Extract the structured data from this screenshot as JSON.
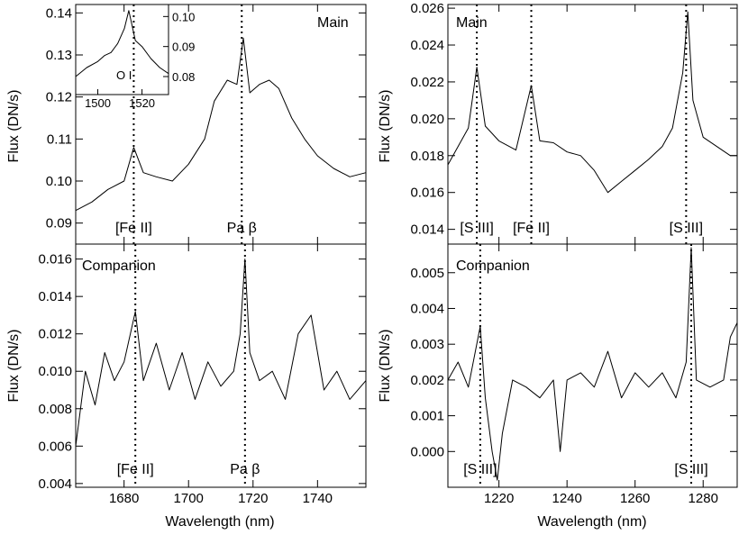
{
  "chart_data": [
    {
      "id": "p1",
      "type": "line",
      "title": "Main",
      "xlabel": "",
      "ylabel": "Flux (DN/s)",
      "xlim": [
        1665,
        1755
      ],
      "ylim": [
        0.085,
        0.142
      ],
      "xticks": [
        1680,
        1700,
        1720,
        1740
      ],
      "xtick_labels": [],
      "yticks": [
        0.09,
        0.1,
        0.11,
        0.12,
        0.13,
        0.14
      ],
      "ytick_labels": [
        "0.09",
        "0.10",
        "0.11",
        "0.12",
        "0.13",
        "0.14"
      ],
      "series": [
        {
          "name": "Main",
          "x": [
            1665,
            1670,
            1675,
            1680,
            1683,
            1686,
            1690,
            1695,
            1700,
            1705,
            1708,
            1712,
            1715,
            1717,
            1719,
            1722,
            1725,
            1728,
            1732,
            1736,
            1740,
            1745,
            1750,
            1755
          ],
          "y": [
            0.093,
            0.095,
            0.098,
            0.1,
            0.108,
            0.102,
            0.101,
            0.1,
            0.104,
            0.11,
            0.119,
            0.124,
            0.123,
            0.134,
            0.121,
            0.123,
            0.124,
            0.122,
            0.115,
            0.11,
            0.106,
            0.103,
            0.101,
            0.102
          ]
        }
      ],
      "markers": [
        {
          "x": 1683,
          "label": "[Fe II]"
        },
        {
          "x": 1716.5,
          "label": "Pa β"
        }
      ],
      "inset": {
        "label": "O I",
        "xlim": [
          1490,
          1532
        ],
        "ylim": [
          0.074,
          0.104
        ],
        "xticks": [
          1500,
          1520
        ],
        "xtick_labels": [
          "1500",
          "1520"
        ],
        "yticks": [
          0.08,
          0.09,
          0.1
        ],
        "ytick_labels": [
          "0.08",
          "0.09",
          "0.10"
        ],
        "x": [
          1490,
          1495,
          1500,
          1503,
          1506,
          1509,
          1512,
          1514,
          1517,
          1520,
          1524,
          1528,
          1532
        ],
        "y": [
          0.08,
          0.083,
          0.085,
          0.087,
          0.088,
          0.091,
          0.096,
          0.102,
          0.092,
          0.09,
          0.086,
          0.083,
          0.081
        ]
      }
    },
    {
      "id": "p2",
      "type": "line",
      "title": "Main",
      "xlabel": "",
      "ylabel": "Flux (DN/s)",
      "xlim": [
        1205,
        1290
      ],
      "ylim": [
        0.0132,
        0.0262
      ],
      "xticks": [
        1220,
        1240,
        1260,
        1280
      ],
      "xtick_labels": [],
      "yticks": [
        0.014,
        0.016,
        0.018,
        0.02,
        0.022,
        0.024,
        0.026
      ],
      "ytick_labels": [
        "0.014",
        "0.016",
        "0.018",
        "0.020",
        "0.022",
        "0.024",
        "0.026"
      ],
      "series": [
        {
          "name": "Main",
          "x": [
            1205,
            1208,
            1211,
            1213.5,
            1216,
            1220,
            1225,
            1229.5,
            1232,
            1236,
            1240,
            1244,
            1248,
            1252,
            1256,
            1260,
            1264,
            1268,
            1271,
            1274,
            1275.5,
            1277,
            1280,
            1284,
            1288,
            1290
          ],
          "y": [
            0.0175,
            0.0185,
            0.0195,
            0.0228,
            0.0196,
            0.0188,
            0.0183,
            0.0218,
            0.0188,
            0.0187,
            0.0182,
            0.018,
            0.0172,
            0.016,
            0.0166,
            0.0172,
            0.0178,
            0.0185,
            0.0195,
            0.0225,
            0.0258,
            0.021,
            0.019,
            0.0185,
            0.018,
            0.018
          ]
        }
      ],
      "markers": [
        {
          "x": 1213.5,
          "label": "[S III]"
        },
        {
          "x": 1229.5,
          "label": "[Fe II]"
        },
        {
          "x": 1275,
          "label": "[S III]"
        }
      ]
    },
    {
      "id": "p3",
      "type": "line",
      "title": "Companion",
      "xlabel": "Wavelength (nm)",
      "ylabel": "Flux (DN/s)",
      "xlim": [
        1665,
        1755
      ],
      "ylim": [
        0.0038,
        0.0168
      ],
      "xticks": [
        1680,
        1700,
        1720,
        1740
      ],
      "xtick_labels": [
        "1680",
        "1700",
        "1720",
        "1740"
      ],
      "yticks": [
        0.004,
        0.006,
        0.008,
        0.01,
        0.012,
        0.014,
        0.016
      ],
      "ytick_labels": [
        "0.004",
        "0.006",
        "0.008",
        "0.010",
        "0.012",
        "0.014",
        "0.016"
      ],
      "series": [
        {
          "name": "Companion",
          "x": [
            1665,
            1668,
            1671,
            1674,
            1677,
            1680,
            1683.5,
            1686,
            1690,
            1694,
            1698,
            1702,
            1706,
            1710,
            1714,
            1716,
            1717.5,
            1719,
            1722,
            1726,
            1730,
            1734,
            1738,
            1742,
            1746,
            1750,
            1755
          ],
          "y": [
            0.006,
            0.01,
            0.0082,
            0.011,
            0.0095,
            0.0105,
            0.0132,
            0.0095,
            0.0115,
            0.009,
            0.011,
            0.0085,
            0.0105,
            0.0092,
            0.01,
            0.012,
            0.016,
            0.011,
            0.0095,
            0.01,
            0.0085,
            0.012,
            0.013,
            0.009,
            0.01,
            0.0085,
            0.0095
          ]
        }
      ],
      "markers": [
        {
          "x": 1683.5,
          "label": "[Fe II]"
        },
        {
          "x": 1717.5,
          "label": "Pa β"
        }
      ]
    },
    {
      "id": "p4",
      "type": "line",
      "title": "Companion",
      "xlabel": "Wavelength (nm)",
      "ylabel": "Flux (DN/s)",
      "xlim": [
        1205,
        1290
      ],
      "ylim": [
        -0.001,
        0.0058
      ],
      "xticks": [
        1220,
        1240,
        1260,
        1280
      ],
      "xtick_labels": [
        "1220",
        "1240",
        "1260",
        "1280"
      ],
      "yticks": [
        0.0,
        0.001,
        0.002,
        0.003,
        0.004,
        0.005
      ],
      "ytick_labels": [
        "0.000",
        "0.001",
        "0.002",
        "0.003",
        "0.004",
        "0.005"
      ],
      "series": [
        {
          "name": "Companion",
          "x": [
            1205,
            1208,
            1211,
            1214.5,
            1216,
            1218,
            1219.5,
            1221,
            1224,
            1228,
            1232,
            1236,
            1238,
            1240,
            1244,
            1248,
            1252,
            1256,
            1260,
            1264,
            1268,
            1272,
            1275,
            1276.5,
            1278,
            1282,
            1286,
            1288,
            1290
          ],
          "y": [
            0.002,
            0.0025,
            0.0018,
            0.0035,
            0.0015,
            0.0,
            -0.0008,
            0.0005,
            0.002,
            0.0018,
            0.0015,
            0.002,
            0.0,
            0.002,
            0.0022,
            0.0018,
            0.0028,
            0.0015,
            0.0022,
            0.0018,
            0.0022,
            0.0015,
            0.0025,
            0.0057,
            0.002,
            0.0018,
            0.002,
            0.0032,
            0.0036
          ]
        }
      ],
      "markers": [
        {
          "x": 1214.5,
          "label": "[S III]"
        },
        {
          "x": 1276.5,
          "label": "[S III]"
        }
      ]
    }
  ]
}
